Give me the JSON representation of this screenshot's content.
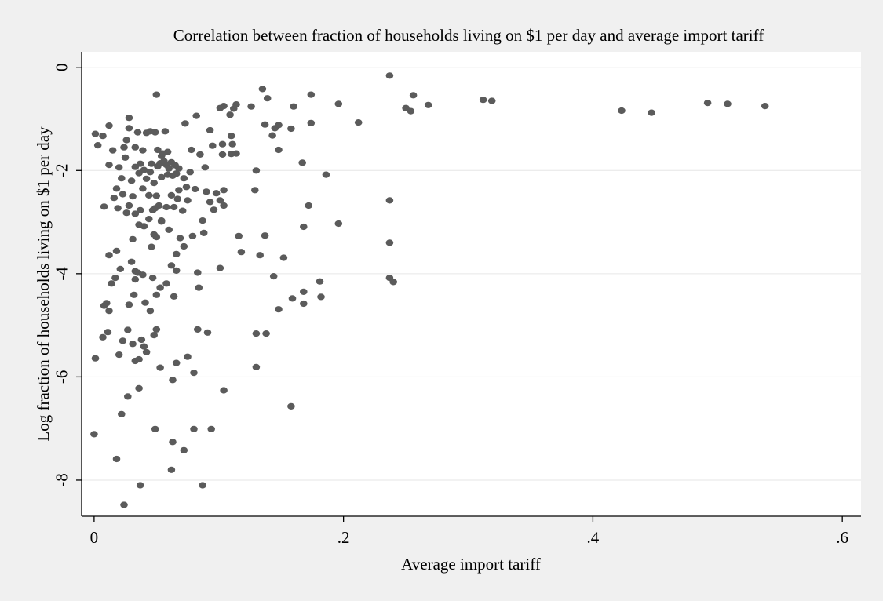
{
  "colors": {
    "background": "#f0f0f0",
    "plot_area": "#ffffff",
    "marker": "#5b5b5b",
    "grid": "#e6e6e6"
  },
  "chart_data": {
    "type": "scatter",
    "title": "Correlation between fraction of households living on $1 per day and average import tariff",
    "xlabel": "Average import tariff",
    "ylabel": "Log fraction of households living on $1 per day",
    "xlim": [
      -0.01,
      0.615
    ],
    "ylim": [
      -8.7,
      0.3
    ],
    "xticks": [
      0,
      0.2,
      0.4,
      0.6
    ],
    "xtick_labels": [
      "0",
      ".2",
      ".4",
      ".6"
    ],
    "yticks": [
      0,
      -2,
      -4,
      -6,
      -8
    ],
    "ytick_labels": [
      "0",
      "-2",
      "-4",
      "-6",
      "-8"
    ],
    "grid": "horizontal",
    "legend": "none",
    "points": [
      [
        0.001,
        -1.29
      ],
      [
        0.003,
        -1.51
      ],
      [
        0.007,
        -1.33
      ],
      [
        0.012,
        -1.13
      ],
      [
        0.015,
        -1.61
      ],
      [
        0.024,
        -1.55
      ],
      [
        0.026,
        -1.41
      ],
      [
        0.028,
        -1.18
      ],
      [
        0.028,
        -0.98
      ],
      [
        0.033,
        -1.55
      ],
      [
        0.035,
        -1.26
      ],
      [
        0.037,
        -1.87
      ],
      [
        0.039,
        -1.61
      ],
      [
        0.042,
        -1.27
      ],
      [
        0.045,
        -1.24
      ],
      [
        0.049,
        -1.26
      ],
      [
        0.05,
        -0.53
      ],
      [
        0.051,
        -1.6
      ],
      [
        0.054,
        -1.72
      ],
      [
        0.055,
        -1.67
      ],
      [
        0.057,
        -1.24
      ],
      [
        0.058,
        -1.89
      ],
      [
        0.059,
        -1.64
      ],
      [
        0.062,
        -1.84
      ],
      [
        0.063,
        -2.1
      ],
      [
        0.066,
        -2.06
      ],
      [
        0.068,
        -1.96
      ],
      [
        0.073,
        -1.09
      ],
      [
        0.078,
        -1.6
      ],
      [
        0.082,
        -0.94
      ],
      [
        0.085,
        -1.69
      ],
      [
        0.089,
        -1.94
      ],
      [
        0.093,
        -1.22
      ],
      [
        0.095,
        -1.52
      ],
      [
        0.101,
        -0.79
      ],
      [
        0.103,
        -1.49
      ],
      [
        0.103,
        -1.69
      ],
      [
        0.104,
        -0.75
      ],
      [
        0.109,
        -0.92
      ],
      [
        0.11,
        -1.33
      ],
      [
        0.11,
        -1.68
      ],
      [
        0.111,
        -1.49
      ],
      [
        0.112,
        -0.8
      ],
      [
        0.114,
        -1.67
      ],
      [
        0.114,
        -0.72
      ],
      [
        0.126,
        -0.76
      ],
      [
        0.135,
        -0.42
      ],
      [
        0.137,
        -1.11
      ],
      [
        0.139,
        -0.6
      ],
      [
        0.143,
        -1.32
      ],
      [
        0.145,
        -1.18
      ],
      [
        0.148,
        -1.12
      ],
      [
        0.148,
        -1.6
      ],
      [
        0.158,
        -1.19
      ],
      [
        0.16,
        -0.76
      ],
      [
        0.174,
        -0.53
      ],
      [
        0.174,
        -1.08
      ],
      [
        0.167,
        -1.85
      ],
      [
        0.186,
        -2.08
      ],
      [
        0.196,
        -0.71
      ],
      [
        0.212,
        -1.07
      ],
      [
        0.237,
        -0.16
      ],
      [
        0.25,
        -0.79
      ],
      [
        0.254,
        -0.85
      ],
      [
        0.256,
        -0.54
      ],
      [
        0.268,
        -0.73
      ],
      [
        0.312,
        -0.63
      ],
      [
        0.319,
        -0.65
      ],
      [
        0.423,
        -0.84
      ],
      [
        0.447,
        -0.88
      ],
      [
        0.492,
        -0.69
      ],
      [
        0.508,
        -0.71
      ],
      [
        0.538,
        -0.75
      ],
      [
        0.008,
        -2.7
      ],
      [
        0.012,
        -1.89
      ],
      [
        0.016,
        -2.53
      ],
      [
        0.018,
        -2.35
      ],
      [
        0.019,
        -2.73
      ],
      [
        0.02,
        -1.94
      ],
      [
        0.022,
        -2.15
      ],
      [
        0.023,
        -2.46
      ],
      [
        0.025,
        -1.75
      ],
      [
        0.026,
        -2.82
      ],
      [
        0.028,
        -2.68
      ],
      [
        0.03,
        -2.2
      ],
      [
        0.031,
        -2.5
      ],
      [
        0.033,
        -2.84
      ],
      [
        0.033,
        -1.93
      ],
      [
        0.036,
        -2.05
      ],
      [
        0.037,
        -2.77
      ],
      [
        0.039,
        -2.35
      ],
      [
        0.04,
        -1.99
      ],
      [
        0.042,
        -2.16
      ],
      [
        0.044,
        -2.48
      ],
      [
        0.044,
        -2.94
      ],
      [
        0.045,
        -2.03
      ],
      [
        0.046,
        -1.87
      ],
      [
        0.047,
        -2.77
      ],
      [
        0.048,
        -2.24
      ],
      [
        0.049,
        -2.73
      ],
      [
        0.05,
        -2.49
      ],
      [
        0.051,
        -1.92
      ],
      [
        0.052,
        -2.68
      ],
      [
        0.053,
        -1.86
      ],
      [
        0.054,
        -2.13
      ],
      [
        0.054,
        -2.97
      ],
      [
        0.056,
        -1.82
      ],
      [
        0.058,
        -2.71
      ],
      [
        0.059,
        -2.08
      ],
      [
        0.06,
        -1.96
      ],
      [
        0.062,
        -2.48
      ],
      [
        0.064,
        -2.71
      ],
      [
        0.065,
        -1.9
      ],
      [
        0.067,
        -2.55
      ],
      [
        0.068,
        -2.38
      ],
      [
        0.071,
        -2.78
      ],
      [
        0.072,
        -2.15
      ],
      [
        0.074,
        -2.32
      ],
      [
        0.075,
        -2.58
      ],
      [
        0.077,
        -2.03
      ],
      [
        0.081,
        -2.36
      ],
      [
        0.087,
        -2.97
      ],
      [
        0.09,
        -2.41
      ],
      [
        0.093,
        -2.61
      ],
      [
        0.096,
        -2.76
      ],
      [
        0.098,
        -2.44
      ],
      [
        0.101,
        -2.58
      ],
      [
        0.104,
        -2.68
      ],
      [
        0.104,
        -2.38
      ],
      [
        0.13,
        -2.0
      ],
      [
        0.129,
        -2.38
      ],
      [
        0.172,
        -2.68
      ],
      [
        0.196,
        -3.03
      ],
      [
        0.237,
        -2.58
      ],
      [
        0.012,
        -3.64
      ],
      [
        0.018,
        -3.56
      ],
      [
        0.03,
        -3.77
      ],
      [
        0.031,
        -3.33
      ],
      [
        0.033,
        -3.95
      ],
      [
        0.036,
        -3.05
      ],
      [
        0.04,
        -3.08
      ],
      [
        0.046,
        -3.48
      ],
      [
        0.048,
        -3.24
      ],
      [
        0.05,
        -3.29
      ],
      [
        0.054,
        -2.99
      ],
      [
        0.06,
        -3.15
      ],
      [
        0.066,
        -3.62
      ],
      [
        0.069,
        -3.31
      ],
      [
        0.072,
        -3.47
      ],
      [
        0.079,
        -3.27
      ],
      [
        0.088,
        -3.21
      ],
      [
        0.116,
        -3.27
      ],
      [
        0.118,
        -3.58
      ],
      [
        0.133,
        -3.64
      ],
      [
        0.137,
        -3.26
      ],
      [
        0.152,
        -3.69
      ],
      [
        0.168,
        -3.09
      ],
      [
        0.237,
        -3.4
      ],
      [
        0.008,
        -4.62
      ],
      [
        0.01,
        -4.57
      ],
      [
        0.012,
        -4.72
      ],
      [
        0.014,
        -4.19
      ],
      [
        0.017,
        -4.08
      ],
      [
        0.021,
        -3.91
      ],
      [
        0.028,
        -4.6
      ],
      [
        0.032,
        -4.41
      ],
      [
        0.033,
        -4.11
      ],
      [
        0.035,
        -3.98
      ],
      [
        0.039,
        -4.02
      ],
      [
        0.041,
        -4.56
      ],
      [
        0.045,
        -4.72
      ],
      [
        0.047,
        -4.08
      ],
      [
        0.05,
        -4.41
      ],
      [
        0.053,
        -4.27
      ],
      [
        0.058,
        -4.19
      ],
      [
        0.062,
        -3.84
      ],
      [
        0.064,
        -4.44
      ],
      [
        0.066,
        -3.94
      ],
      [
        0.084,
        -4.27
      ],
      [
        0.083,
        -3.98
      ],
      [
        0.101,
        -3.89
      ],
      [
        0.144,
        -4.05
      ],
      [
        0.148,
        -4.69
      ],
      [
        0.159,
        -4.48
      ],
      [
        0.168,
        -4.35
      ],
      [
        0.168,
        -4.58
      ],
      [
        0.181,
        -4.15
      ],
      [
        0.182,
        -4.45
      ],
      [
        0.237,
        -4.08
      ],
      [
        0.24,
        -4.16
      ],
      [
        0.001,
        -5.64
      ],
      [
        0.007,
        -5.23
      ],
      [
        0.011,
        -5.13
      ],
      [
        0.02,
        -5.57
      ],
      [
        0.023,
        -5.3
      ],
      [
        0.027,
        -5.09
      ],
      [
        0.031,
        -5.36
      ],
      [
        0.033,
        -5.69
      ],
      [
        0.036,
        -5.66
      ],
      [
        0.038,
        -5.28
      ],
      [
        0.04,
        -5.41
      ],
      [
        0.042,
        -5.52
      ],
      [
        0.048,
        -5.19
      ],
      [
        0.05,
        -5.08
      ],
      [
        0.053,
        -5.82
      ],
      [
        0.066,
        -5.73
      ],
      [
        0.075,
        -5.61
      ],
      [
        0.08,
        -5.92
      ],
      [
        0.083,
        -5.08
      ],
      [
        0.091,
        -5.14
      ],
      [
        0.13,
        -5.81
      ],
      [
        0.13,
        -5.16
      ],
      [
        0.138,
        -5.16
      ],
      [
        0.022,
        -6.72
      ],
      [
        0.027,
        -6.38
      ],
      [
        0.036,
        -6.22
      ],
      [
        0.063,
        -6.06
      ],
      [
        0.104,
        -6.26
      ],
      [
        0.158,
        -6.57
      ],
      [
        0.0,
        -7.11
      ],
      [
        0.049,
        -7.01
      ],
      [
        0.063,
        -7.26
      ],
      [
        0.072,
        -7.42
      ],
      [
        0.08,
        -7.01
      ],
      [
        0.094,
        -7.01
      ],
      [
        0.018,
        -7.59
      ],
      [
        0.062,
        -7.8
      ],
      [
        0.037,
        -8.1
      ],
      [
        0.087,
        -8.1
      ],
      [
        0.024,
        -8.48
      ]
    ]
  }
}
